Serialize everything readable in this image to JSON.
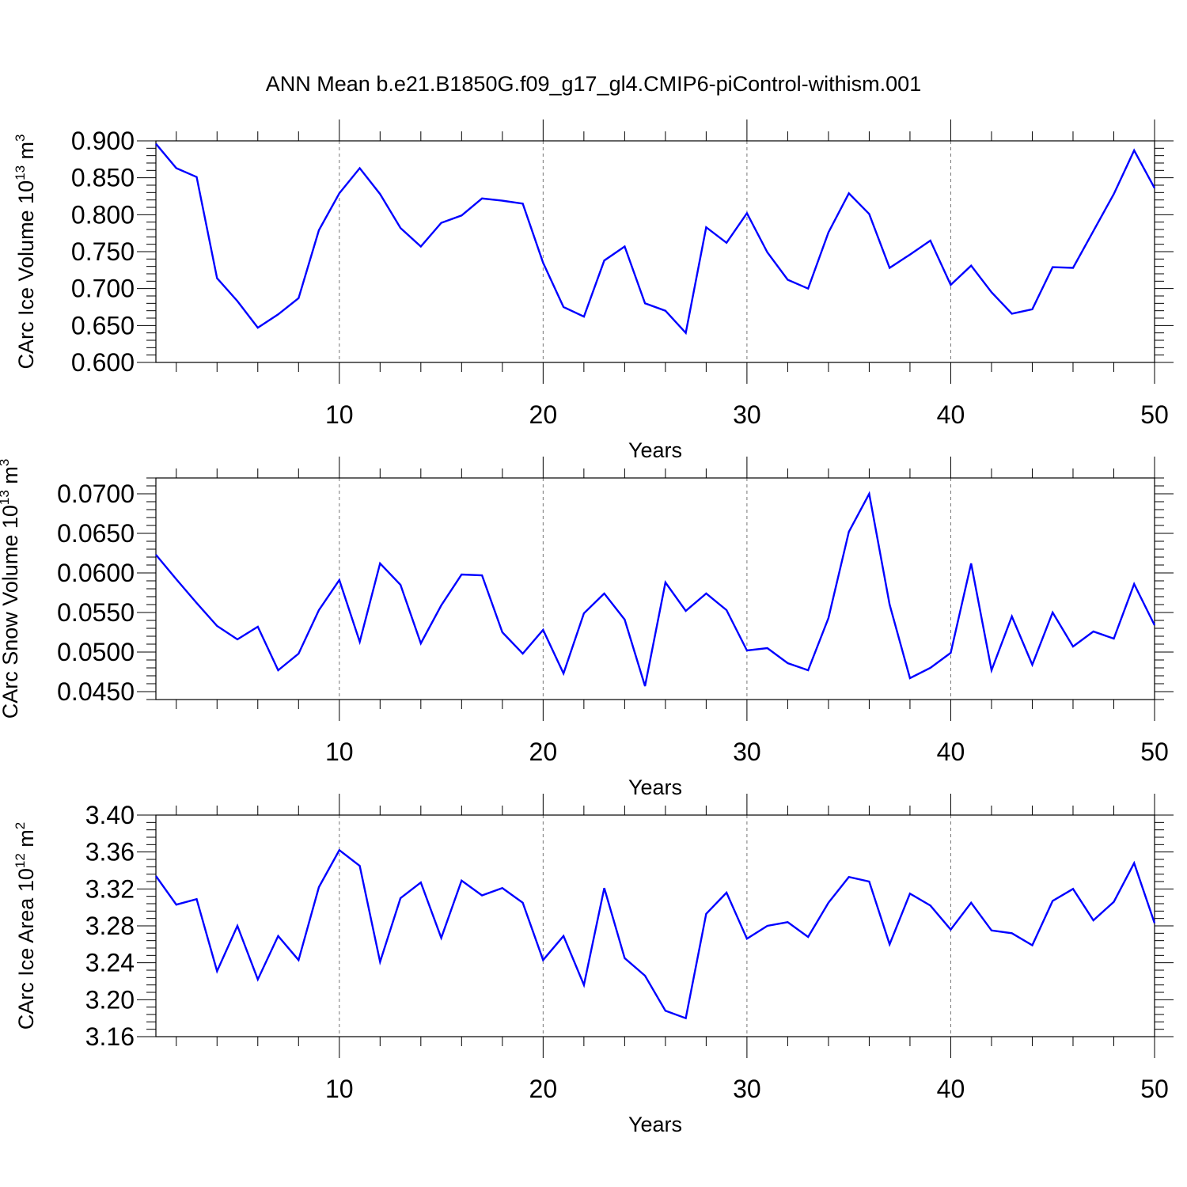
{
  "title": "ANN Mean b.e21.B1850G.f09_g17_gl4.CMIP6-piControl-withism.001",
  "line_color": "#0000ff",
  "chart_data": [
    {
      "type": "line",
      "ylabel": "CArc Ice Volume 10",
      "ylabel_sup": "13",
      "ylabel_unit": "m",
      "ylabel_unit_sup": "3",
      "xlabel": "Years",
      "xlim": [
        1,
        50
      ],
      "ylim": [
        0.6,
        0.9
      ],
      "x_ticks": [
        "10",
        "20",
        "30",
        "40",
        "50"
      ],
      "y_ticks": [
        "0.600",
        "0.650",
        "0.700",
        "0.750",
        "0.800",
        "0.850",
        "0.900"
      ],
      "x": [
        1,
        2,
        3,
        4,
        5,
        6,
        7,
        8,
        9,
        10,
        11,
        12,
        13,
        14,
        15,
        16,
        17,
        18,
        19,
        20,
        21,
        22,
        23,
        24,
        25,
        26,
        27,
        28,
        29,
        30,
        31,
        32,
        33,
        34,
        35,
        36,
        37,
        38,
        39,
        40,
        41,
        42,
        43,
        44,
        45,
        46,
        47,
        48,
        49,
        50
      ],
      "values": [
        0.896,
        0.863,
        0.851,
        0.714,
        0.683,
        0.647,
        0.665,
        0.687,
        0.779,
        0.829,
        0.863,
        0.828,
        0.782,
        0.757,
        0.789,
        0.799,
        0.822,
        0.819,
        0.815,
        0.735,
        0.675,
        0.662,
        0.738,
        0.757,
        0.68,
        0.67,
        0.64,
        0.783,
        0.762,
        0.802,
        0.749,
        0.712,
        0.7,
        0.776,
        0.829,
        0.801,
        0.728,
        0.746,
        0.765,
        0.705,
        0.731,
        0.695,
        0.666,
        0.672,
        0.729,
        0.728,
        0.778,
        0.828,
        0.887,
        0.836
      ]
    },
    {
      "type": "line",
      "ylabel": "CArc Snow Volume 10",
      "ylabel_sup": "13",
      "ylabel_unit": "m",
      "ylabel_unit_sup": "3",
      "xlabel": "Years",
      "xlim": [
        1,
        50
      ],
      "ylim": [
        0.044,
        0.072
      ],
      "x_ticks": [
        "10",
        "20",
        "30",
        "40",
        "50"
      ],
      "y_ticks": [
        "0.0450",
        "0.0500",
        "0.0550",
        "0.0600",
        "0.0650",
        "0.0700"
      ],
      "x": [
        1,
        2,
        3,
        4,
        5,
        6,
        7,
        8,
        9,
        10,
        11,
        12,
        13,
        14,
        15,
        16,
        17,
        18,
        19,
        20,
        21,
        22,
        23,
        24,
        25,
        26,
        27,
        28,
        29,
        30,
        31,
        32,
        33,
        34,
        35,
        36,
        37,
        38,
        39,
        40,
        41,
        42,
        43,
        44,
        45,
        46,
        47,
        48,
        49,
        50
      ],
      "values": [
        0.0623,
        0.0592,
        0.0562,
        0.0533,
        0.0516,
        0.0532,
        0.0477,
        0.0498,
        0.0553,
        0.0591,
        0.0513,
        0.0612,
        0.0585,
        0.0511,
        0.0559,
        0.0598,
        0.0597,
        0.0525,
        0.0498,
        0.0528,
        0.0473,
        0.0549,
        0.0574,
        0.0541,
        0.0457,
        0.0588,
        0.0552,
        0.0574,
        0.0553,
        0.0502,
        0.0505,
        0.0486,
        0.0477,
        0.0543,
        0.0652,
        0.07,
        0.056,
        0.0467,
        0.048,
        0.0499,
        0.0612,
        0.0477,
        0.0545,
        0.0484,
        0.055,
        0.0507,
        0.0526,
        0.0517,
        0.0586,
        0.0534
      ]
    },
    {
      "type": "line",
      "ylabel": "CArc Ice Area 10",
      "ylabel_sup": "12",
      "ylabel_unit": "m",
      "ylabel_unit_sup": "2",
      "xlabel": "Years",
      "xlim": [
        1,
        50
      ],
      "ylim": [
        3.16,
        3.4
      ],
      "x_ticks": [
        "10",
        "20",
        "30",
        "40",
        "50"
      ],
      "y_ticks": [
        "3.16",
        "3.20",
        "3.24",
        "3.28",
        "3.32",
        "3.36",
        "3.40"
      ],
      "x": [
        1,
        2,
        3,
        4,
        5,
        6,
        7,
        8,
        9,
        10,
        11,
        12,
        13,
        14,
        15,
        16,
        17,
        18,
        19,
        20,
        21,
        22,
        23,
        24,
        25,
        26,
        27,
        28,
        29,
        30,
        31,
        32,
        33,
        34,
        35,
        36,
        37,
        38,
        39,
        40,
        41,
        42,
        43,
        44,
        45,
        46,
        47,
        48,
        49,
        50
      ],
      "values": [
        3.334,
        3.303,
        3.309,
        3.231,
        3.28,
        3.222,
        3.269,
        3.243,
        3.322,
        3.362,
        3.345,
        3.241,
        3.31,
        3.327,
        3.267,
        3.329,
        3.313,
        3.321,
        3.305,
        3.243,
        3.269,
        3.216,
        3.321,
        3.245,
        3.226,
        3.188,
        3.18,
        3.293,
        3.316,
        3.266,
        3.28,
        3.284,
        3.268,
        3.305,
        3.333,
        3.328,
        3.26,
        3.315,
        3.302,
        3.276,
        3.305,
        3.275,
        3.272,
        3.259,
        3.307,
        3.32,
        3.286,
        3.306,
        3.348,
        3.283
      ]
    }
  ]
}
